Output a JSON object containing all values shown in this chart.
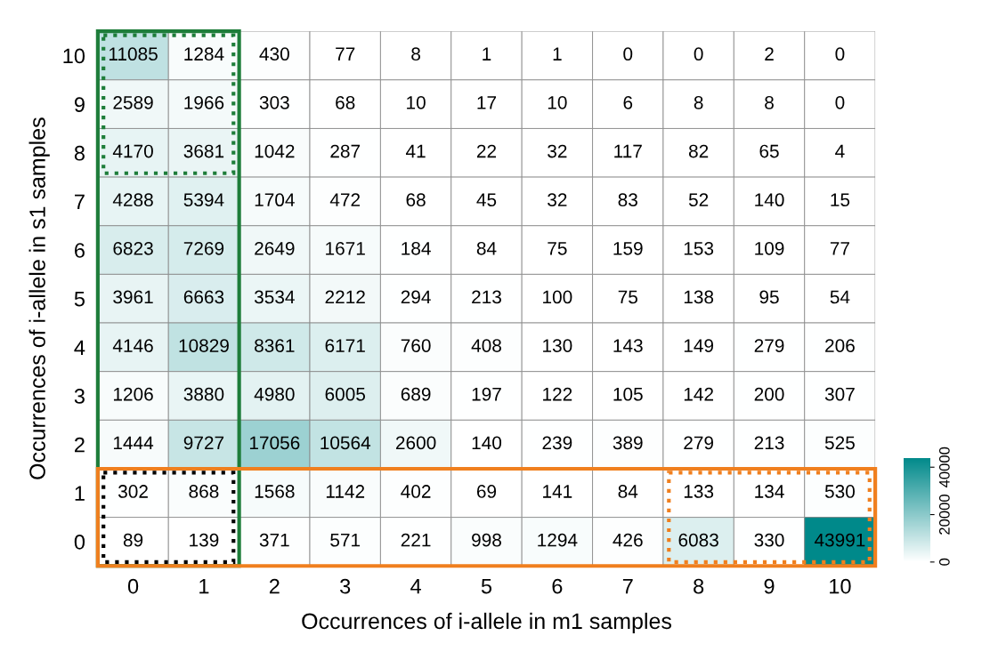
{
  "chart_data": {
    "type": "heatmap",
    "xlabel": "Occurrences of i-allele in m1 samples",
    "ylabel": "Occurrences of i-allele in s1 samples",
    "categories": [
      "0",
      "1",
      "2",
      "3",
      "4",
      "5",
      "6",
      "7",
      "8",
      "9",
      "10"
    ],
    "y_categories": [
      "10",
      "9",
      "8",
      "7",
      "6",
      "5",
      "4",
      "3",
      "2",
      "1",
      "0"
    ],
    "cells": [
      [
        11085,
        1284,
        430,
        77,
        8,
        1,
        1,
        0,
        0,
        2,
        0
      ],
      [
        2589,
        1966,
        303,
        68,
        10,
        17,
        10,
        6,
        8,
        8,
        0
      ],
      [
        4170,
        3681,
        1042,
        287,
        41,
        22,
        32,
        117,
        82,
        65,
        4
      ],
      [
        4288,
        5394,
        1704,
        472,
        68,
        45,
        32,
        83,
        52,
        140,
        15
      ],
      [
        6823,
        7269,
        2649,
        1671,
        184,
        84,
        75,
        159,
        153,
        109,
        77
      ],
      [
        3961,
        6663,
        3534,
        2212,
        294,
        213,
        100,
        75,
        138,
        95,
        54
      ],
      [
        4146,
        10829,
        8361,
        6171,
        760,
        408,
        130,
        143,
        149,
        279,
        206
      ],
      [
        1206,
        3880,
        4980,
        6005,
        689,
        197,
        122,
        105,
        142,
        200,
        307
      ],
      [
        1444,
        9727,
        17056,
        10564,
        2600,
        140,
        239,
        389,
        279,
        213,
        525
      ],
      [
        302,
        868,
        1568,
        1142,
        402,
        69,
        141,
        84,
        133,
        134,
        530
      ],
      [
        89,
        139,
        371,
        571,
        221,
        998,
        1294,
        426,
        6083,
        330,
        43991
      ]
    ],
    "data_labels": true,
    "colors": [
      "#ffffff",
      "#00898a"
    ],
    "clim": [
      0,
      44000
    ],
    "cticks": [
      0,
      20000,
      40000
    ]
  }
}
